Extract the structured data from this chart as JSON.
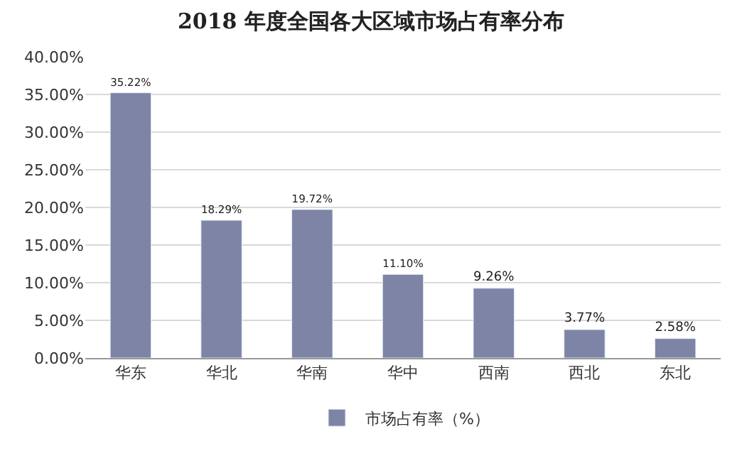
{
  "chart_data": {
    "type": "bar",
    "title": "2018 年度全国各大区域市场占有率分布",
    "categories": [
      "华东",
      "华北",
      "华南",
      "华中",
      "西南",
      "西北",
      "东北"
    ],
    "series": [
      {
        "name": "市场占有率（%）",
        "color": "#7d84a6",
        "values": [
          35.22,
          18.29,
          19.72,
          11.1,
          9.26,
          3.77,
          2.58
        ],
        "value_labels": [
          "35.22%",
          "18.29%",
          "19.72%",
          "11.10%",
          "9.26%",
          "3.77%",
          "2.58%"
        ]
      }
    ],
    "ylim": [
      0,
      40
    ],
    "yticks": [
      {
        "value": 0,
        "label": "0.00%"
      },
      {
        "value": 5,
        "label": "5.00%"
      },
      {
        "value": 10,
        "label": "10.00%"
      },
      {
        "value": 15,
        "label": "15.00%"
      },
      {
        "value": 20,
        "label": "20.00%"
      },
      {
        "value": 25,
        "label": "25.00%"
      },
      {
        "value": 30,
        "label": "30.00%"
      },
      {
        "value": 35,
        "label": "35.00%"
      },
      {
        "value": 40,
        "label": "40.00%"
      }
    ],
    "grid": "y",
    "legend": "bottom"
  }
}
